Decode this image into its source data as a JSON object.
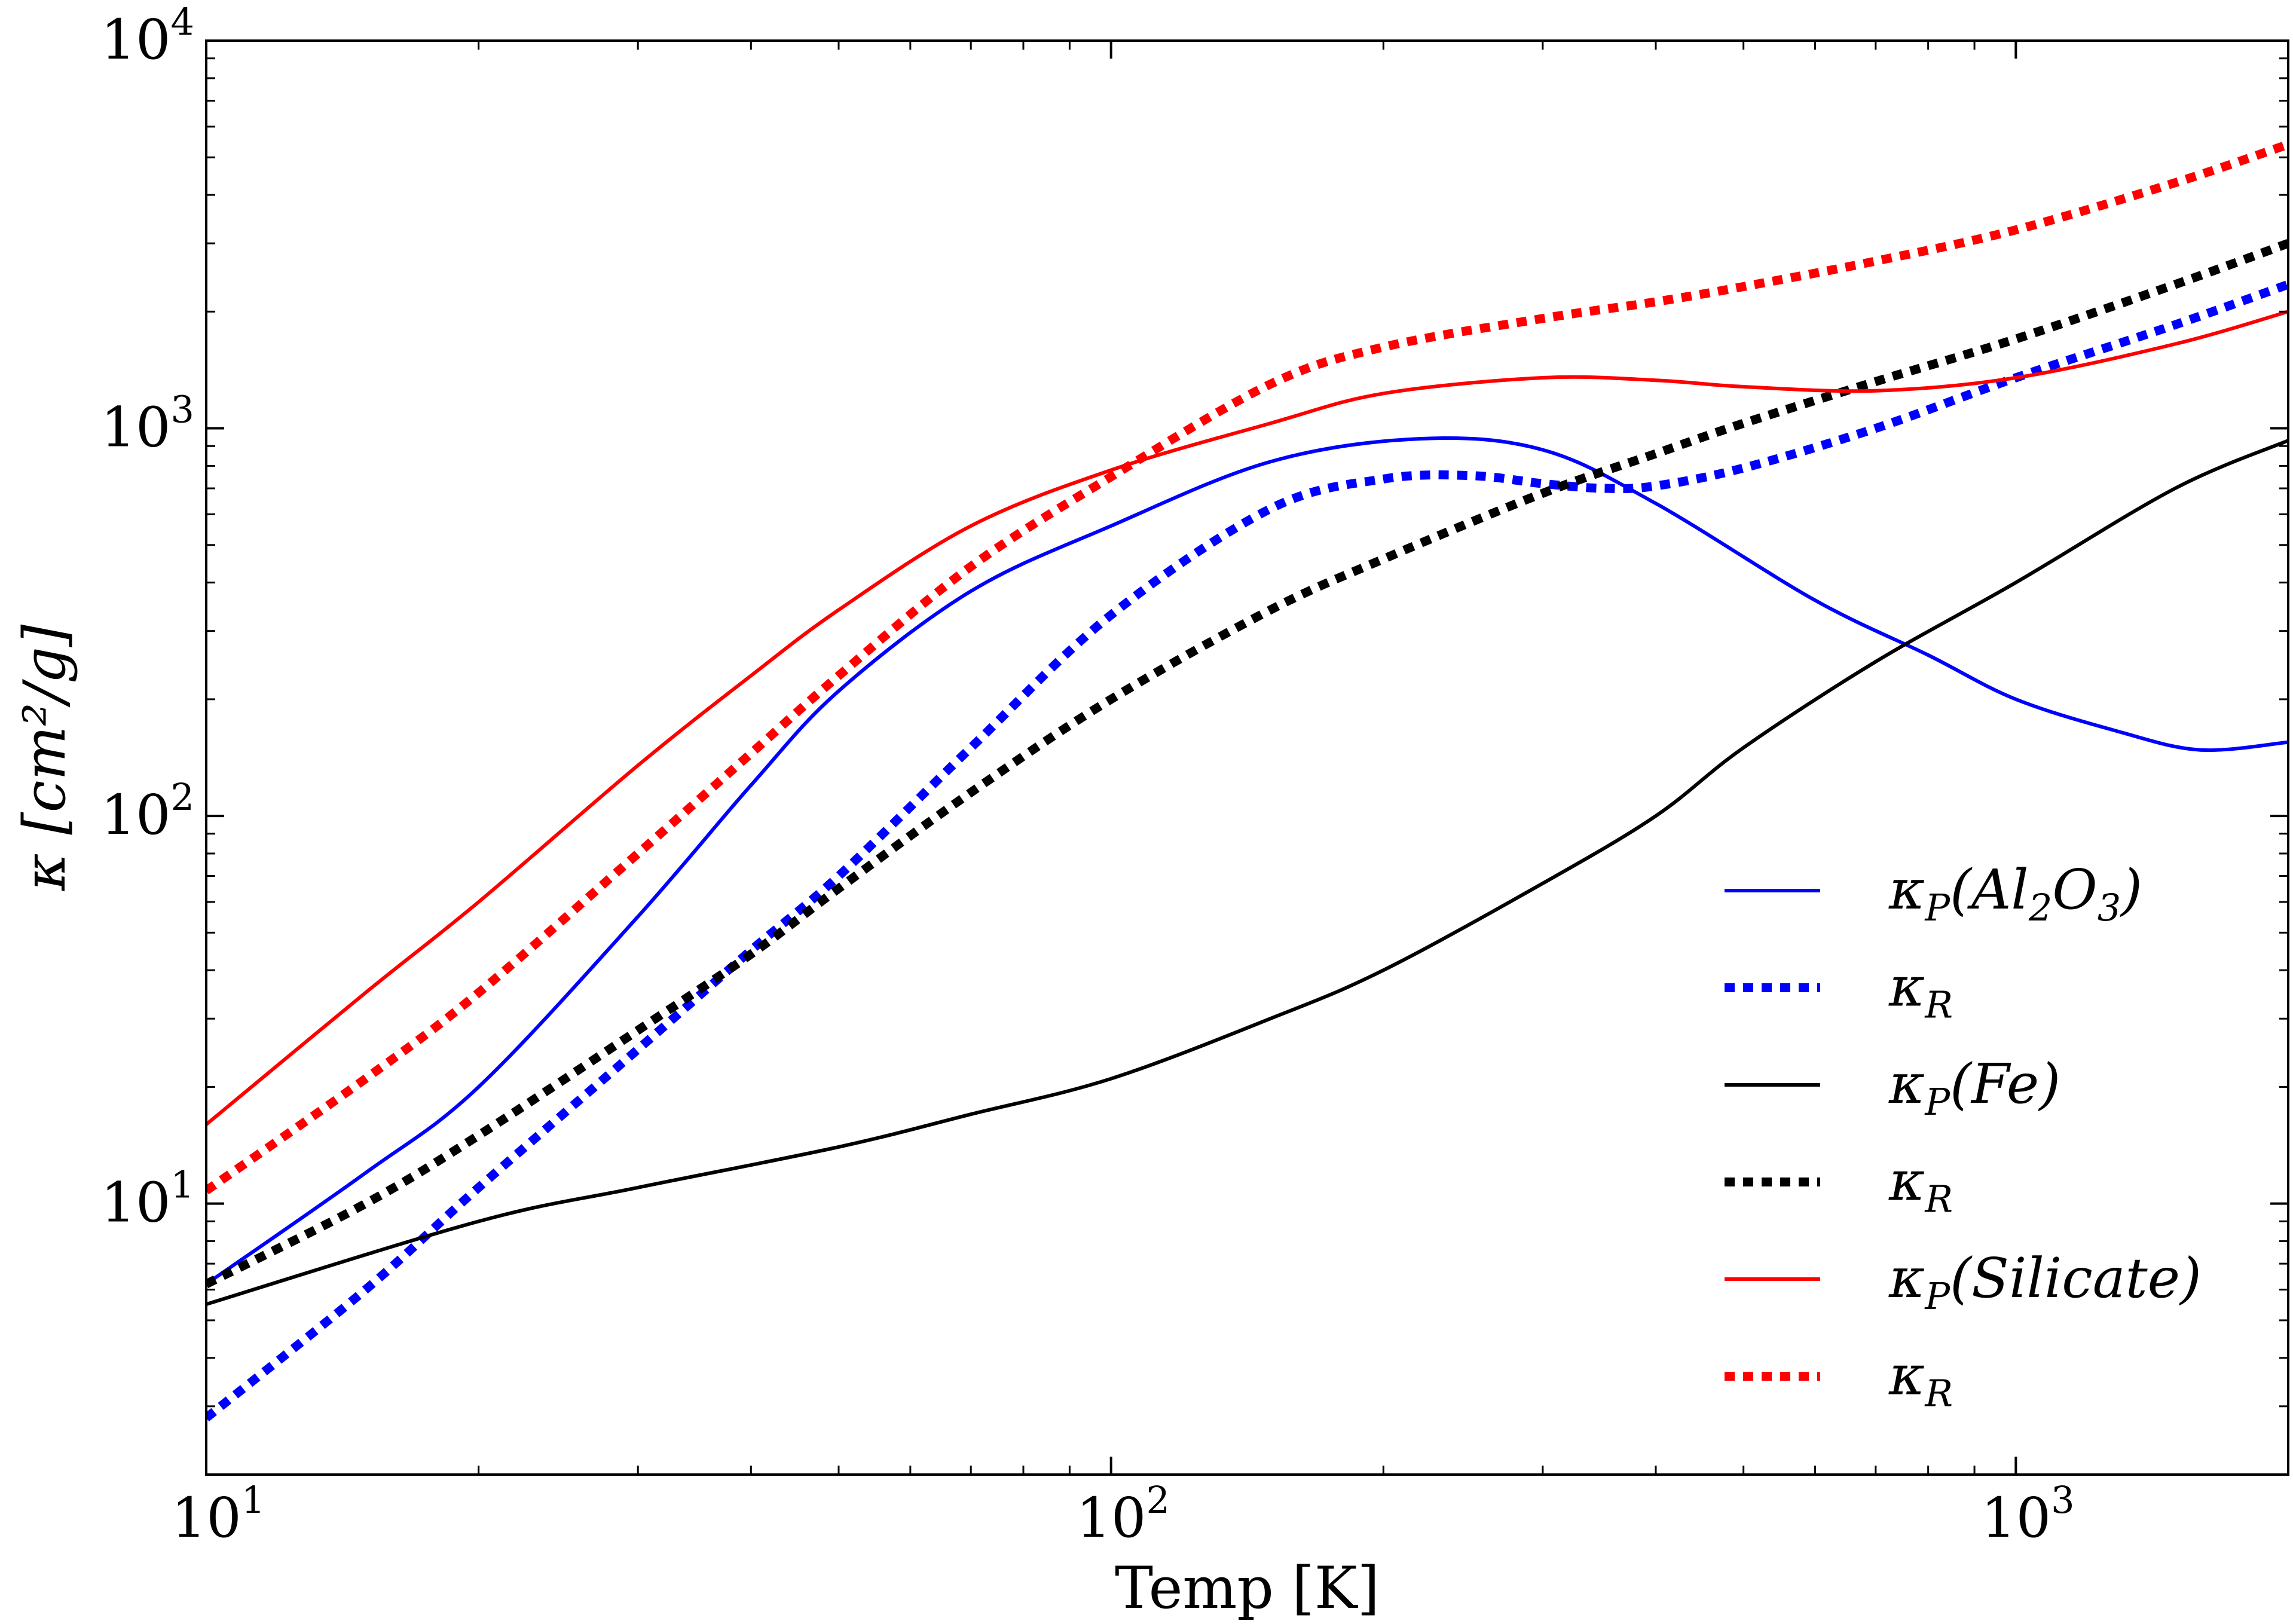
{
  "chart_data": {
    "type": "line",
    "scale": {
      "x": "log",
      "y": "log"
    },
    "xlim": [
      10,
      2000
    ],
    "ylim": [
      2,
      10000
    ],
    "xlabel": "Temp [K]",
    "ylabel": "κ [cm²/g]",
    "x_ticks": [
      {
        "value": 10,
        "base": "10",
        "exp": "1"
      },
      {
        "value": 100,
        "base": "10",
        "exp": "2"
      },
      {
        "value": 1000,
        "base": "10",
        "exp": "3"
      }
    ],
    "y_ticks": [
      {
        "value": 10,
        "base": "10",
        "exp": "1"
      },
      {
        "value": 100,
        "base": "10",
        "exp": "2"
      },
      {
        "value": 1000,
        "base": "10",
        "exp": "3"
      },
      {
        "value": 10000,
        "base": "10",
        "exp": "4"
      }
    ],
    "legend_position": "lower right",
    "series": [
      {
        "name": "κP(Al2O3)",
        "label": {
          "main": "κ",
          "sub": "P",
          "pre": "(Al",
          "sub2": "2",
          "mid": "O",
          "sub3": "3",
          "post": ")"
        },
        "color": "#0000ff",
        "style": "solid",
        "x": [
          10,
          15,
          20,
          30,
          40,
          50,
          70,
          100,
          150,
          220,
          300,
          400,
          600,
          800,
          1000,
          1300,
          1600,
          2000
        ],
        "y": [
          6.2,
          12,
          20,
          55,
          120,
          210,
          380,
          560,
          820,
          940,
          880,
          640,
          360,
          260,
          200,
          165,
          148,
          155
        ]
      },
      {
        "name": "κR",
        "label": {
          "main": "κ",
          "sub": "R"
        },
        "color": "#0000ff",
        "style": "dotted",
        "x": [
          10,
          15,
          20,
          30,
          40,
          50,
          70,
          100,
          150,
          200,
          250,
          300,
          350,
          400,
          500,
          700,
          1000,
          1500,
          2000
        ],
        "y": [
          2.8,
          6,
          11,
          25,
          45,
          70,
          150,
          330,
          620,
          740,
          755,
          720,
          700,
          710,
          790,
          1000,
          1350,
          1850,
          2350
        ]
      },
      {
        "name": "κP(Fe)",
        "label": {
          "main": "κ",
          "sub": "P",
          "pre": "(Fe",
          "post": ")"
        },
        "color": "#000000",
        "style": "solid",
        "x": [
          10,
          20,
          30,
          50,
          70,
          100,
          150,
          200,
          300,
          400,
          500,
          700,
          1000,
          1500,
          2000
        ],
        "y": [
          5.5,
          9,
          11,
          14,
          17,
          21,
          30,
          40,
          67,
          100,
          150,
          250,
          400,
          700,
          930
        ]
      },
      {
        "name": "κR",
        "label": {
          "main": "κ",
          "sub": "R"
        },
        "color": "#000000",
        "style": "dotted",
        "x": [
          10,
          15,
          20,
          30,
          40,
          50,
          70,
          100,
          150,
          200,
          300,
          400,
          500,
          700,
          1000,
          1500,
          2000
        ],
        "y": [
          6.2,
          10,
          15,
          28,
          44,
          65,
          115,
          200,
          340,
          460,
          680,
          860,
          1030,
          1320,
          1700,
          2350,
          3000
        ]
      },
      {
        "name": "κP(Silicate)",
        "label": {
          "main": "κ",
          "sub": "P",
          "pre": "(Silicate",
          "post": ")"
        },
        "color": "#ff0000",
        "style": "solid",
        "x": [
          10,
          15,
          20,
          30,
          40,
          50,
          70,
          100,
          150,
          200,
          300,
          400,
          500,
          700,
          1000,
          1500,
          2000
        ],
        "y": [
          16,
          35,
          60,
          135,
          230,
          340,
          560,
          780,
          1030,
          1230,
          1350,
          1330,
          1280,
          1250,
          1350,
          1650,
          2000
        ]
      },
      {
        "name": "κR",
        "label": {
          "main": "κ",
          "sub": "R"
        },
        "color": "#ff0000",
        "style": "dotted",
        "x": [
          10,
          15,
          20,
          30,
          40,
          50,
          70,
          100,
          150,
          200,
          300,
          400,
          500,
          700,
          1000,
          1500,
          2000
        ],
        "y": [
          10.8,
          21,
          35,
          80,
          145,
          230,
          440,
          750,
          1300,
          1620,
          1920,
          2120,
          2320,
          2700,
          3250,
          4300,
          5400
        ]
      }
    ]
  }
}
